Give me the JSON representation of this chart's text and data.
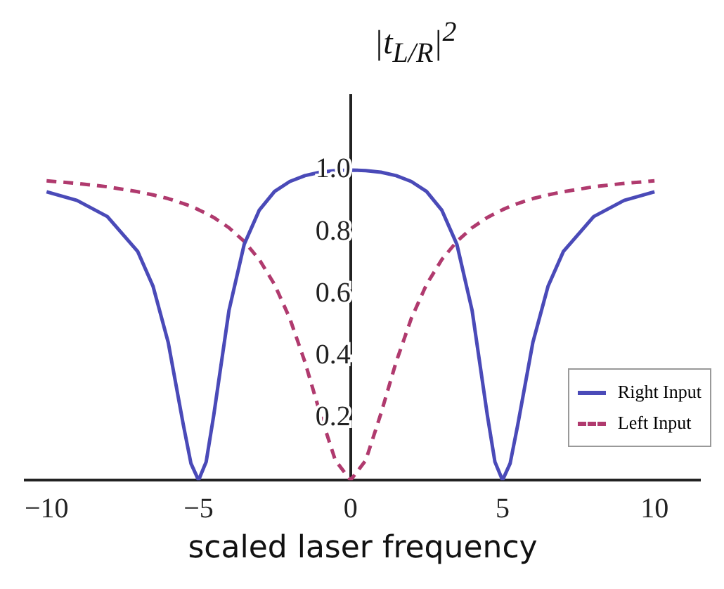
{
  "chart_data": {
    "type": "line",
    "ylabel": "|t$_{L/R}$|$^{2}$",
    "xlabel": "scaled laser frequency",
    "x": [
      -10,
      -9,
      -8,
      -7,
      -6.5,
      -6,
      -5.5,
      -5.25,
      -5,
      -4.75,
      -4.5,
      -4,
      -3.5,
      -3,
      -2.5,
      -2,
      -1.5,
      -1,
      -0.5,
      0,
      0.5,
      1,
      1.5,
      2,
      2.5,
      3,
      3.5,
      4,
      4.5,
      4.75,
      5,
      5.25,
      5.5,
      6,
      6.5,
      7,
      8,
      9,
      10
    ],
    "series": [
      {
        "name": "Right Input",
        "color": "#4a4ab8",
        "line_style": "solid",
        "values": [
          0.93,
          0.902,
          0.85,
          0.737,
          0.626,
          0.445,
          0.178,
          0.054,
          0,
          0.059,
          0.21,
          0.547,
          0.76,
          0.871,
          0.931,
          0.963,
          0.982,
          0.993,
          0.998,
          1,
          0.998,
          0.993,
          0.982,
          0.963,
          0.931,
          0.871,
          0.76,
          0.547,
          0.21,
          0.059,
          0,
          0.054,
          0.178,
          0.445,
          0.626,
          0.737,
          0.85,
          0.902,
          0.93
        ]
      },
      {
        "name": "Left Input",
        "color": "#b03a6e",
        "line_style": "dashed",
        "values": [
          0.965,
          0.957,
          0.946,
          0.93,
          0.92,
          0.908,
          0.892,
          0.883,
          0.872,
          0.86,
          0.847,
          0.814,
          0.77,
          0.711,
          0.631,
          0.522,
          0.381,
          0.215,
          0.064,
          0,
          0.064,
          0.215,
          0.381,
          0.522,
          0.631,
          0.711,
          0.77,
          0.814,
          0.847,
          0.86,
          0.872,
          0.883,
          0.892,
          0.908,
          0.92,
          0.93,
          0.946,
          0.957,
          0.965
        ]
      }
    ],
    "xlim": [
      -10.7,
      11.5
    ],
    "ylim": [
      0,
      1.24
    ],
    "xticks": [
      {
        "value": -10,
        "label": "−10"
      },
      {
        "value": -5,
        "label": "−5"
      },
      0,
      5,
      10
    ],
    "yticks": [
      0.2,
      0.4,
      0.6,
      0.8,
      {
        "value": 1,
        "label": "1.0"
      }
    ],
    "grid": false,
    "legend": "bottom right",
    "marker": "none"
  }
}
